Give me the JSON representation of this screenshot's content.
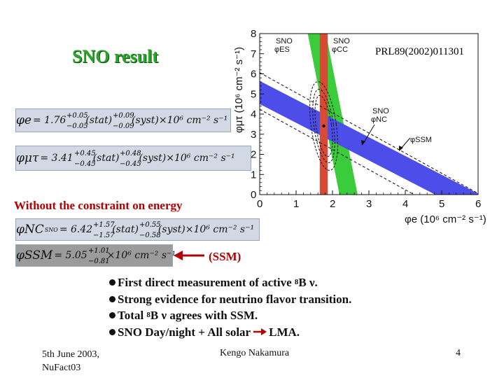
{
  "slide": {
    "title": "SNO result",
    "reference": "PRL89(2002)011301"
  },
  "equations": {
    "phi_e": {
      "symbol": "φe",
      "value": "= 1.76",
      "stat_up": "+0.05",
      "stat_dn": "−0.05",
      "mid": "(stat)",
      "syst_up": "+0.09",
      "syst_dn": "−0.09",
      "tail": "(syst)×10⁶ cm⁻² s⁻¹"
    },
    "phi_mt": {
      "symbol": "φμτ",
      "value": "= 3.41",
      "stat_up": "+0.45",
      "stat_dn": "−0.45",
      "mid": "(stat)",
      "syst_up": "+0.48",
      "syst_dn": "−0.45",
      "tail": "(syst)×10⁶ cm⁻² s⁻¹"
    },
    "phi_nc": {
      "symbol": "φNC",
      "sup": "SNO",
      "value": "= 6.42",
      "stat_up": "+1.57",
      "stat_dn": "−1.57",
      "mid": "(stat)",
      "syst_up": "+0.55",
      "syst_dn": "−0.58",
      "tail": "(syst)×10⁶ cm⁻² s⁻¹"
    },
    "phi_ssm": {
      "symbol": "φSSM",
      "value": "= 5.05",
      "up": "+1.01",
      "dn": "−0.81",
      "tail": "×10⁶ cm⁻² s⁻¹"
    }
  },
  "constraint_note": "Without the constraint on energy",
  "ssm_label": "(SSM)",
  "bullets": [
    {
      "pre": "First direct measurement of active ",
      "sup": "8",
      "post": "B ν."
    },
    {
      "pre": "Strong evidence for neutrino flavor transition.",
      "sup": "",
      "post": ""
    },
    {
      "pre": "Total ",
      "sup": "8",
      "post": "B ν agrees with SSM."
    },
    {
      "pre": "SNO Day/night + All solar",
      "arrow": true,
      "post": "LMA."
    }
  ],
  "footer": {
    "date_line1": "5th June 2003,",
    "date_line2": "NuFact03",
    "author": "Kengo Nakamura",
    "page": "4"
  },
  "chart_data": {
    "type": "scatter",
    "xlabel": "φe (10⁶ cm⁻² s⁻¹)",
    "ylabel": "φμτ (10⁶ cm⁻² s⁻¹)",
    "xlim": [
      0,
      6
    ],
    "ylim": [
      0,
      8
    ],
    "xticks": [
      "0",
      "1",
      "2",
      "3",
      "4",
      "5",
      "6"
    ],
    "yticks": [
      "0",
      "1",
      "2",
      "3",
      "4",
      "5",
      "6",
      "7",
      "8"
    ],
    "best_fit": {
      "x": 1.76,
      "y": 3.41
    },
    "bands": [
      {
        "name": "SNO ES",
        "label_main": "φES",
        "label_sup": "SNO",
        "color": "#3bcc3b",
        "note": "band of φe + 0.154 φμτ"
      },
      {
        "name": "SNO CC",
        "label_main": "φCC",
        "label_sup": "SNO",
        "color": "#d94a34",
        "range_x": [
          1.65,
          1.87
        ]
      },
      {
        "name": "SNO NC",
        "label_main": "φNC",
        "label_sup": "SNO",
        "color": "#4d4dea"
      },
      {
        "name": "SSM",
        "label_main": "φSSM",
        "label_sup": "",
        "color": "#444444"
      }
    ],
    "colors": {
      "es": "#3bcc3b",
      "cc": "#d94a34",
      "nc": "#4d4dea"
    }
  }
}
